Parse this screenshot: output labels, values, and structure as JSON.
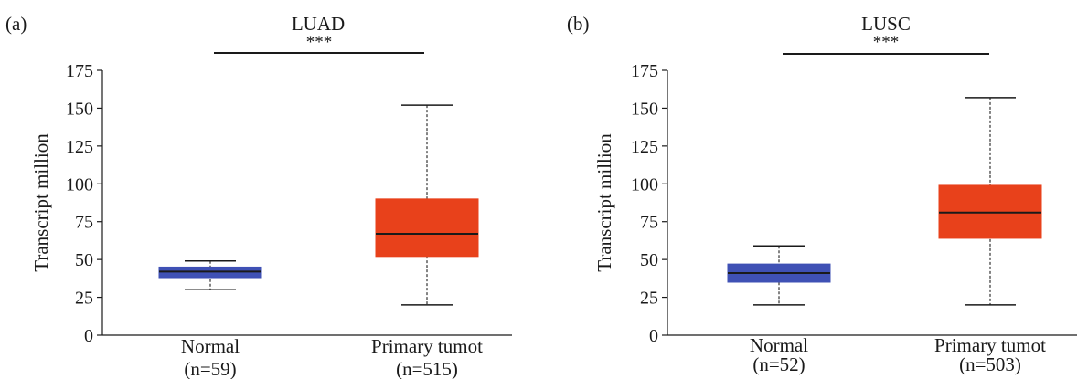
{
  "chart_data": [
    {
      "type": "box",
      "panel_label": "(a)",
      "title": "LUAD",
      "significance": "***",
      "ylabel": "Transcript million",
      "ylim": [
        0,
        175
      ],
      "yticks": [
        0,
        25,
        50,
        75,
        100,
        125,
        150,
        175
      ],
      "categories": [
        {
          "name": "Normal",
          "n_label": "(n=59)",
          "color": "#3f51b5",
          "min": 30,
          "q1": 38,
          "median": 42,
          "q3": 45,
          "max": 49
        },
        {
          "name": "Primary tumot",
          "n_label": "(n=515)",
          "color": "#e8411b",
          "min": 20,
          "q1": 52,
          "median": 67,
          "q3": 90,
          "max": 152
        }
      ]
    },
    {
      "type": "box",
      "panel_label": "(b)",
      "title": "LUSC",
      "significance": "***",
      "ylabel": "Transcript million",
      "ylim": [
        0,
        175
      ],
      "yticks": [
        0,
        25,
        50,
        75,
        100,
        125,
        150,
        175
      ],
      "categories": [
        {
          "name": "Normal",
          "n_label": "(n=52)",
          "color": "#3f51b5",
          "min": 20,
          "q1": 35,
          "median": 41,
          "q3": 47,
          "max": 59
        },
        {
          "name": "Primary tumot",
          "n_label": "(n=503)",
          "color": "#e8411b",
          "min": 20,
          "q1": 64,
          "median": 81,
          "q3": 99,
          "max": 157
        }
      ]
    }
  ]
}
